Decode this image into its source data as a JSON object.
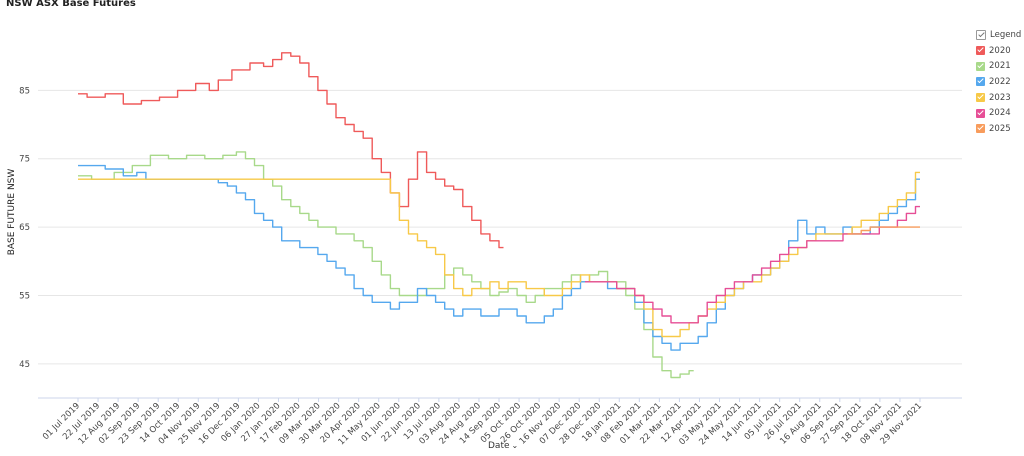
{
  "page": {
    "title": "NSW ASX Base Futures"
  },
  "legend": {
    "header": "Legend",
    "items": [
      {
        "label": "2020",
        "color": "#ef5a5a"
      },
      {
        "label": "2021",
        "color": "#a8d98a"
      },
      {
        "label": "2022",
        "color": "#55a8ee"
      },
      {
        "label": "2023",
        "color": "#f7c948"
      },
      {
        "label": "2024",
        "color": "#e64e96"
      },
      {
        "label": "2025",
        "color": "#f89c5c"
      }
    ]
  },
  "x_control": {
    "label": "Date",
    "icon": "chevron-down-icon"
  },
  "chart_data": {
    "type": "line",
    "title": "NSW ASX Base Futures",
    "ylabel": "BASE FUTURE NSW",
    "xlabel": "Date",
    "ylim": [
      40,
      95
    ],
    "y_ticks": [
      45,
      55,
      65,
      75,
      85
    ],
    "grid": "horizontal",
    "legend_position": "right",
    "x_ticks": [
      "01 Jul 2019",
      "22 Jul 2019",
      "12 Aug 2019",
      "02 Sep 2019",
      "23 Sep 2019",
      "14 Oct 2019",
      "04 Nov 2019",
      "25 Nov 2019",
      "16 Dec 2019",
      "06 Jan 2020",
      "27 Jan 2020",
      "17 Feb 2020",
      "09 Mar 2020",
      "30 Mar 2020",
      "20 Apr 2020",
      "11 May 2020",
      "01 Jun 2020",
      "22 Jun 2020",
      "13 Jul 2020",
      "03 Aug 2020",
      "24 Aug 2020",
      "14 Sep 2020",
      "05 Oct 2020",
      "26 Oct 2020",
      "16 Nov 2020",
      "07 Dec 2020",
      "28 Dec 2020",
      "18 Jan 2021",
      "08 Feb 2021",
      "01 Mar 2021",
      "22 Mar 2021",
      "12 Apr 2021",
      "03 May 2021",
      "24 May 2021",
      "14 Jun 2021",
      "05 Jul 2021",
      "26 Jul 2021",
      "16 Aug 2021",
      "06 Sep 2021",
      "27 Sep 2021",
      "18 Oct 2021",
      "08 Nov 2021",
      "29 Nov 2021"
    ],
    "series": [
      {
        "name": "2020",
        "color": "#ef5a5a",
        "points": [
          [
            0,
            84.5
          ],
          [
            2,
            84
          ],
          [
            4,
            84.5
          ],
          [
            6,
            83
          ],
          [
            8,
            83.5
          ],
          [
            10,
            84
          ],
          [
            12,
            85
          ],
          [
            14,
            86
          ],
          [
            15,
            85
          ],
          [
            16,
            86.5
          ],
          [
            18,
            88
          ],
          [
            20,
            89
          ],
          [
            21,
            88.5
          ],
          [
            22,
            89.5
          ],
          [
            23,
            90.5
          ],
          [
            24,
            90
          ],
          [
            25,
            89
          ],
          [
            26,
            87
          ],
          [
            27,
            85
          ],
          [
            28,
            83
          ],
          [
            29,
            81
          ],
          [
            30,
            80
          ],
          [
            31,
            79
          ],
          [
            32,
            78
          ],
          [
            33,
            75
          ],
          [
            34,
            73
          ],
          [
            35,
            70
          ],
          [
            36,
            68
          ],
          [
            37,
            72
          ],
          [
            38,
            76
          ],
          [
            39,
            73
          ],
          [
            40,
            72
          ],
          [
            41,
            71
          ],
          [
            42,
            70.5
          ],
          [
            43,
            68
          ],
          [
            44,
            66
          ],
          [
            45,
            64
          ],
          [
            46,
            63
          ],
          [
            47,
            62
          ]
        ]
      },
      {
        "name": "2021",
        "color": "#a8d98a",
        "points": [
          [
            0,
            72.5
          ],
          [
            3,
            72
          ],
          [
            5,
            73
          ],
          [
            7,
            74
          ],
          [
            9,
            75.5
          ],
          [
            11,
            75
          ],
          [
            13,
            75.5
          ],
          [
            15,
            75
          ],
          [
            17,
            75.5
          ],
          [
            18,
            76
          ],
          [
            19,
            75
          ],
          [
            20,
            74
          ],
          [
            21,
            72
          ],
          [
            22,
            71
          ],
          [
            23,
            69
          ],
          [
            24,
            68
          ],
          [
            25,
            67
          ],
          [
            26,
            66
          ],
          [
            27,
            65
          ],
          [
            28,
            65
          ],
          [
            29,
            64
          ],
          [
            30,
            64
          ],
          [
            31,
            63
          ],
          [
            32,
            62
          ],
          [
            33,
            60
          ],
          [
            34,
            58
          ],
          [
            35,
            56
          ],
          [
            36,
            55
          ],
          [
            37,
            55
          ],
          [
            38,
            55
          ],
          [
            39,
            56
          ],
          [
            40,
            56
          ],
          [
            41,
            58
          ],
          [
            42,
            59
          ],
          [
            43,
            58
          ],
          [
            44,
            57
          ],
          [
            45,
            56
          ],
          [
            46,
            55
          ],
          [
            47,
            55.5
          ],
          [
            48,
            56
          ],
          [
            49,
            55
          ],
          [
            50,
            54
          ],
          [
            51,
            55
          ],
          [
            52,
            56
          ],
          [
            53,
            56
          ],
          [
            54,
            57
          ],
          [
            55,
            58
          ],
          [
            56,
            57
          ],
          [
            57,
            58
          ],
          [
            58,
            58.5
          ],
          [
            59,
            57
          ],
          [
            60,
            57
          ],
          [
            61,
            55
          ],
          [
            62,
            53
          ],
          [
            63,
            50
          ],
          [
            64,
            46
          ],
          [
            65,
            44
          ],
          [
            66,
            43
          ],
          [
            67,
            43.5
          ],
          [
            68,
            44
          ]
        ]
      },
      {
        "name": "2022",
        "color": "#55a8ee",
        "points": [
          [
            0,
            74
          ],
          [
            2,
            74
          ],
          [
            4,
            73.5
          ],
          [
            6,
            72.5
          ],
          [
            7,
            73
          ],
          [
            8,
            72
          ],
          [
            10,
            72
          ],
          [
            12,
            72
          ],
          [
            14,
            72
          ],
          [
            15,
            72
          ],
          [
            16,
            71.5
          ],
          [
            17,
            71
          ],
          [
            18,
            70
          ],
          [
            19,
            69
          ],
          [
            20,
            67
          ],
          [
            21,
            66
          ],
          [
            22,
            65
          ],
          [
            23,
            63
          ],
          [
            24,
            63
          ],
          [
            25,
            62
          ],
          [
            26,
            62
          ],
          [
            27,
            61
          ],
          [
            28,
            60
          ],
          [
            29,
            59
          ],
          [
            30,
            58
          ],
          [
            31,
            56
          ],
          [
            32,
            55
          ],
          [
            33,
            54
          ],
          [
            34,
            54
          ],
          [
            35,
            53
          ],
          [
            36,
            54
          ],
          [
            37,
            54
          ],
          [
            38,
            56
          ],
          [
            39,
            55
          ],
          [
            40,
            54
          ],
          [
            41,
            53
          ],
          [
            42,
            52
          ],
          [
            43,
            53
          ],
          [
            44,
            53
          ],
          [
            45,
            52
          ],
          [
            46,
            52
          ],
          [
            47,
            53
          ],
          [
            48,
            53
          ],
          [
            49,
            52
          ],
          [
            50,
            51
          ],
          [
            51,
            51
          ],
          [
            52,
            52
          ],
          [
            53,
            53
          ],
          [
            54,
            55
          ],
          [
            55,
            56
          ],
          [
            56,
            57
          ],
          [
            57,
            57
          ],
          [
            58,
            57
          ],
          [
            59,
            56
          ],
          [
            60,
            56
          ],
          [
            61,
            56
          ],
          [
            62,
            54
          ],
          [
            63,
            51
          ],
          [
            64,
            49
          ],
          [
            65,
            48
          ],
          [
            66,
            47
          ],
          [
            67,
            48
          ],
          [
            68,
            48
          ],
          [
            69,
            49
          ],
          [
            70,
            51
          ],
          [
            71,
            53
          ],
          [
            72,
            55
          ],
          [
            73,
            56
          ],
          [
            74,
            57
          ],
          [
            75,
            58
          ],
          [
            76,
            58
          ],
          [
            77,
            59
          ],
          [
            78,
            60
          ],
          [
            79,
            63
          ],
          [
            80,
            66
          ],
          [
            81,
            64
          ],
          [
            82,
            65
          ],
          [
            83,
            64
          ],
          [
            84,
            64
          ],
          [
            85,
            65
          ],
          [
            86,
            64
          ],
          [
            87,
            64
          ],
          [
            88,
            65
          ],
          [
            89,
            66
          ],
          [
            90,
            67
          ],
          [
            91,
            68
          ],
          [
            92,
            69
          ],
          [
            93,
            72
          ]
        ]
      },
      {
        "name": "2023",
        "color": "#f7c948",
        "points": [
          [
            0,
            72
          ],
          [
            5,
            72
          ],
          [
            10,
            72
          ],
          [
            15,
            72
          ],
          [
            20,
            72
          ],
          [
            25,
            72
          ],
          [
            30,
            72
          ],
          [
            34,
            72
          ],
          [
            35,
            70
          ],
          [
            36,
            66
          ],
          [
            37,
            64
          ],
          [
            38,
            63
          ],
          [
            39,
            62
          ],
          [
            40,
            61
          ],
          [
            41,
            58
          ],
          [
            42,
            56
          ],
          [
            43,
            55
          ],
          [
            44,
            56
          ],
          [
            45,
            56
          ],
          [
            46,
            57
          ],
          [
            47,
            56
          ],
          [
            48,
            57
          ],
          [
            49,
            57
          ],
          [
            50,
            56
          ],
          [
            51,
            56
          ],
          [
            52,
            55
          ],
          [
            53,
            55
          ],
          [
            54,
            56
          ],
          [
            55,
            57
          ],
          [
            56,
            58
          ],
          [
            57,
            57
          ],
          [
            58,
            57
          ],
          [
            59,
            57
          ],
          [
            60,
            56
          ],
          [
            61,
            56
          ],
          [
            62,
            55
          ],
          [
            63,
            53
          ],
          [
            64,
            50
          ],
          [
            65,
            49
          ],
          [
            66,
            49
          ],
          [
            67,
            50
          ],
          [
            68,
            51
          ],
          [
            69,
            52
          ],
          [
            70,
            53
          ],
          [
            71,
            54
          ],
          [
            72,
            55
          ],
          [
            73,
            56
          ],
          [
            74,
            57
          ],
          [
            75,
            57
          ],
          [
            76,
            58
          ],
          [
            77,
            59
          ],
          [
            78,
            60
          ],
          [
            79,
            61
          ],
          [
            80,
            62
          ],
          [
            81,
            63
          ],
          [
            82,
            64
          ],
          [
            83,
            64
          ],
          [
            84,
            64
          ],
          [
            85,
            64
          ],
          [
            86,
            65
          ],
          [
            87,
            66
          ],
          [
            88,
            66
          ],
          [
            89,
            67
          ],
          [
            90,
            68
          ],
          [
            91,
            69
          ],
          [
            92,
            70
          ],
          [
            93,
            73
          ]
        ]
      },
      {
        "name": "2024",
        "color": "#e64e96",
        "points": [
          [
            56,
            57
          ],
          [
            57,
            57
          ],
          [
            58,
            57
          ],
          [
            59,
            57
          ],
          [
            60,
            56
          ],
          [
            61,
            56
          ],
          [
            62,
            55
          ],
          [
            63,
            54
          ],
          [
            64,
            53
          ],
          [
            65,
            52
          ],
          [
            66,
            51
          ],
          [
            67,
            51
          ],
          [
            68,
            51
          ],
          [
            69,
            52
          ],
          [
            70,
            54
          ],
          [
            71,
            55
          ],
          [
            72,
            56
          ],
          [
            73,
            57
          ],
          [
            74,
            57
          ],
          [
            75,
            58
          ],
          [
            76,
            59
          ],
          [
            77,
            60
          ],
          [
            78,
            61
          ],
          [
            79,
            62
          ],
          [
            80,
            62
          ],
          [
            81,
            63
          ],
          [
            82,
            63
          ],
          [
            83,
            63
          ],
          [
            84,
            63
          ],
          [
            85,
            64
          ],
          [
            86,
            64
          ],
          [
            87,
            64
          ],
          [
            88,
            64
          ],
          [
            89,
            65
          ],
          [
            90,
            65
          ],
          [
            91,
            66
          ],
          [
            92,
            67
          ],
          [
            93,
            68
          ]
        ]
      },
      {
        "name": "2025",
        "color": "#f89c5c",
        "points": [
          [
            85,
            64
          ],
          [
            86,
            64
          ],
          [
            87,
            64.5
          ],
          [
            88,
            65
          ],
          [
            89,
            65
          ],
          [
            90,
            65
          ],
          [
            91,
            65
          ],
          [
            92,
            65
          ],
          [
            93,
            65
          ]
        ]
      }
    ]
  }
}
